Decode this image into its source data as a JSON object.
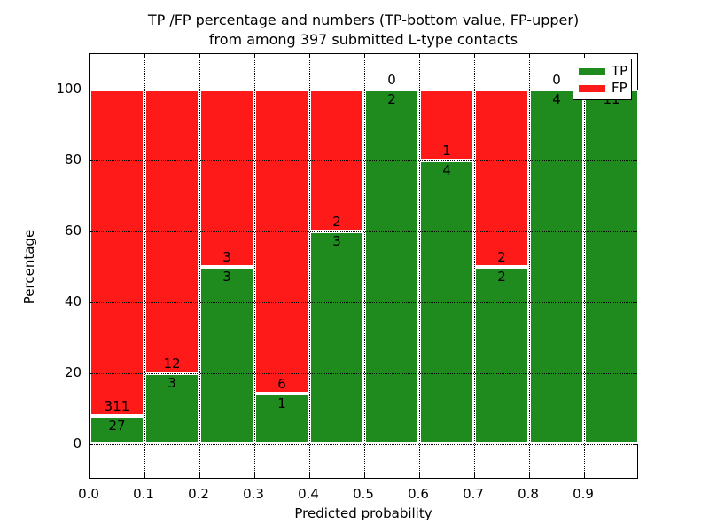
{
  "chart_data": {
    "type": "bar",
    "stacked": true,
    "title_line1": "TP /FP percentage and numbers (TP-bottom value, FP-upper)",
    "title_line2": "from among 397 submitted L-type contacts",
    "xlabel": "Predicted probability",
    "ylabel": "Percentage",
    "xlim": [
      0.0,
      1.0
    ],
    "ylim": [
      -10,
      110
    ],
    "bin_width": 0.1,
    "grid": "dotted black, horizontal at every 20%, vertical at every 0.1",
    "legend_position": "upper right",
    "categories": [
      "0.0-0.1",
      "0.1-0.2",
      "0.2-0.3",
      "0.3-0.4",
      "0.4-0.5",
      "0.5-0.6",
      "0.6-0.7",
      "0.7-0.8",
      "0.8-0.9",
      "0.9-1.0"
    ],
    "x_tick_labels": [
      "0.0",
      "0.1",
      "0.2",
      "0.3",
      "0.4",
      "0.5",
      "0.6",
      "0.7",
      "0.8",
      "0.9"
    ],
    "y_tick_labels": [
      "0",
      "20",
      "40",
      "60",
      "80",
      "100"
    ],
    "y_tick_values": [
      0,
      20,
      40,
      60,
      80,
      100
    ],
    "series": [
      {
        "name": "TP",
        "color": "#1f8b1f",
        "counts": [
          27,
          3,
          3,
          1,
          3,
          2,
          4,
          2,
          4,
          11
        ],
        "percent": [
          7.99,
          20.0,
          50.0,
          14.29,
          60.0,
          100.0,
          80.0,
          50.0,
          100.0,
          100.0
        ]
      },
      {
        "name": "FP",
        "color": "#ff1a1a",
        "counts": [
          311,
          12,
          3,
          6,
          2,
          0,
          1,
          2,
          0,
          0
        ],
        "percent": [
          92.01,
          80.0,
          50.0,
          85.71,
          40.0,
          0.0,
          20.0,
          50.0,
          0.0,
          0.0
        ]
      }
    ]
  }
}
